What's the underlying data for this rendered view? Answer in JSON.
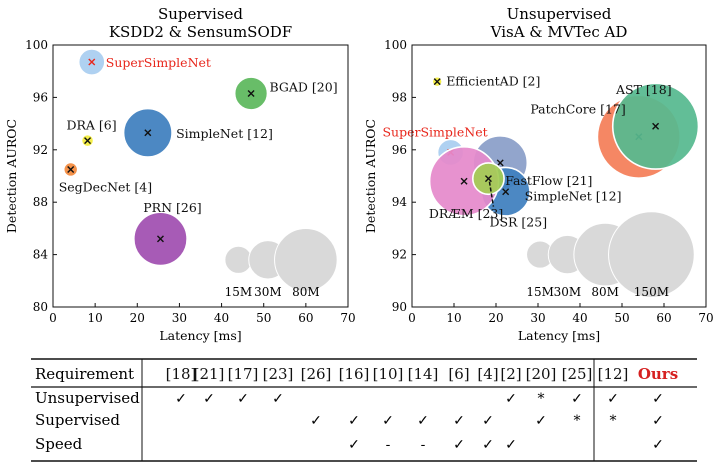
{
  "chart_data": [
    {
      "type": "bubble",
      "title": "Supervised",
      "subtitle": "KSDD2 & SensumSODF",
      "xlabel": "Latency [ms]",
      "ylabel": "Detection AUROC",
      "xlim": [
        0,
        70
      ],
      "ylim": [
        80,
        100
      ],
      "xticks": [
        0,
        10,
        20,
        30,
        40,
        50,
        60,
        70
      ],
      "yticks": [
        80,
        84,
        88,
        92,
        96,
        100
      ],
      "points": [
        {
          "label": "SuperSimpleNet",
          "x": 9.2,
          "y": 98.7,
          "params_m": 14,
          "color": "#a9cdf0",
          "marker": "#e8271c",
          "label_color": "#e8271c"
        },
        {
          "label": "BGAD [20]",
          "x": 47,
          "y": 96.3,
          "params_m": 22,
          "color": "#5cb85c",
          "marker": "#111111",
          "label_color": "#111111"
        },
        {
          "label": "DRA [6]",
          "x": 8.2,
          "y": 92.7,
          "params_m": 3,
          "color": "#f4ee3c",
          "marker": "#111111",
          "label_color": "#111111"
        },
        {
          "label": "SimpleNet [12]",
          "x": 22.5,
          "y": 93.3,
          "params_m": 48,
          "color": "#3e7fbe",
          "marker": "#111111",
          "label_color": "#111111"
        },
        {
          "label": "SegDecNet [4]",
          "x": 4.2,
          "y": 90.5,
          "params_m": 4,
          "color": "#f48a3c",
          "marker": "#111111",
          "label_color": "#111111"
        },
        {
          "label": "PRN [26]",
          "x": 25.5,
          "y": 85.2,
          "params_m": 58,
          "color": "#a04fb0",
          "marker": "#111111",
          "label_color": "#111111"
        }
      ],
      "size_legend": [
        {
          "label": "15M",
          "x": 44,
          "y": 83.6,
          "params_m": 15
        },
        {
          "label": "30M",
          "x": 51,
          "y": 83.6,
          "params_m": 30
        },
        {
          "label": "80M",
          "x": 60,
          "y": 83.6,
          "params_m": 80
        }
      ]
    },
    {
      "type": "bubble",
      "title": "Unsupervised",
      "subtitle": "VisA & MVTec AD",
      "xlabel": "Latency [ms]",
      "ylabel": "Detection AUROC",
      "xlim": [
        0,
        70
      ],
      "ylim": [
        90,
        100
      ],
      "xticks": [
        0,
        10,
        20,
        30,
        40,
        50,
        60,
        70
      ],
      "yticks": [
        90,
        92,
        94,
        96,
        98,
        100
      ],
      "points": [
        {
          "label": "EfficientAD [2]",
          "x": 6,
          "y": 98.6,
          "params_m": 2,
          "color": "#f4ee3c",
          "marker": "#111111",
          "label_color": "#111111"
        },
        {
          "label": "SuperSimpleNet",
          "x": 9.2,
          "y": 95.9,
          "params_m": 14,
          "color": "#a9cdf0",
          "marker": "#e8271c",
          "label_color": "#e8271c"
        },
        {
          "label": "FastFlow [21]",
          "x": 21,
          "y": 95.5,
          "params_m": 60,
          "color": "#8a9ec8",
          "marker": "#111111",
          "label_color": "#111111"
        },
        {
          "label": "SimpleNet [12]",
          "x": 22.3,
          "y": 94.4,
          "params_m": 48,
          "color": "#3e7fbe",
          "marker": "#111111",
          "label_color": "#111111"
        },
        {
          "label": "DRÆM [23]",
          "x": 12.4,
          "y": 94.8,
          "params_m": 97,
          "color": "#e58acb",
          "marker": "#111111",
          "label_color": "#111111"
        },
        {
          "label": "DSR [25]",
          "x": 18.2,
          "y": 94.9,
          "params_m": 20,
          "color": "#a4cc54",
          "marker": "#111111",
          "label_color": "#111111"
        },
        {
          "label": "PatchCore [17]",
          "x": 54,
          "y": 96.5,
          "params_m": 140,
          "color": "#f47e58",
          "marker": "#111111",
          "label_color": "#111111"
        },
        {
          "label": "AST [18]",
          "x": 58,
          "y": 96.9,
          "params_m": 150,
          "color": "#56b98f",
          "marker": "#111111",
          "label_color": "#111111"
        }
      ],
      "size_legend": [
        {
          "label": "15M",
          "x": 30.5,
          "y": 92,
          "params_m": 15
        },
        {
          "label": "30M",
          "x": 37,
          "y": 92,
          "params_m": 30
        },
        {
          "label": "80M",
          "x": 46,
          "y": 92,
          "params_m": 80
        },
        {
          "label": "150M",
          "x": 57,
          "y": 92,
          "params_m": 150
        }
      ]
    }
  ],
  "table": {
    "header_label": "Requirement",
    "columns": [
      "[18]",
      "[21]",
      "[17]",
      "[23]",
      "[26]",
      "[16]",
      "[10]",
      "[14]",
      "[6]",
      "[4]",
      "[2]",
      "[20]",
      "[25]",
      "[12]",
      "Ours"
    ],
    "highlight_column": "Ours",
    "highlight_color": "#d62020",
    "rows": [
      {
        "label": "Unsupervised",
        "cells": [
          "✓",
          "✓",
          "✓",
          "✓",
          "",
          "",
          "",
          "",
          "",
          "",
          "✓",
          "*",
          "✓",
          "✓",
          "✓"
        ]
      },
      {
        "label": "Supervised",
        "cells": [
          "",
          "",
          "",
          "",
          "✓",
          "✓",
          "✓",
          "✓",
          "✓",
          "✓",
          "",
          "✓",
          "*",
          "*",
          "✓"
        ]
      },
      {
        "label": "Speed",
        "cells": [
          "",
          "",
          "",
          "",
          "",
          "✓",
          "-",
          "-",
          "✓",
          "✓",
          "✓",
          "",
          "",
          "",
          "✓"
        ]
      }
    ]
  }
}
